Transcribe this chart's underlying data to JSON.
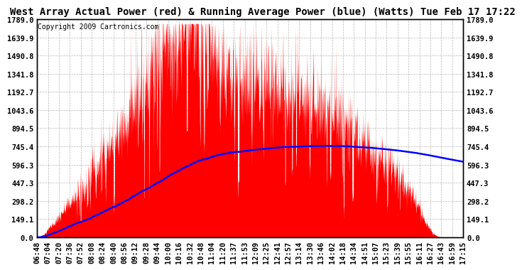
{
  "title": "West Array Actual Power (red) & Running Average Power (blue) (Watts) Tue Feb 17 17:22",
  "copyright": "Copyright 2009 Cartronics.com",
  "ylabel_values": [
    0.0,
    149.1,
    298.2,
    447.3,
    596.3,
    745.4,
    894.5,
    1043.6,
    1192.7,
    1341.8,
    1490.8,
    1639.9,
    1789.0
  ],
  "ymax": 1789.0,
  "ymin": 0.0,
  "bg_color": "#ffffff",
  "plot_bg_color": "#ffffff",
  "grid_color": "#888888",
  "red_color": "#ff0000",
  "blue_color": "#0000ff",
  "title_fontsize": 10,
  "copyright_fontsize": 7,
  "tick_label_fontsize": 7.5,
  "x_tick_labels": [
    "06:48",
    "07:04",
    "07:20",
    "07:36",
    "07:52",
    "08:08",
    "08:24",
    "08:40",
    "08:56",
    "09:12",
    "09:28",
    "09:44",
    "10:00",
    "10:16",
    "10:32",
    "10:48",
    "11:04",
    "11:20",
    "11:37",
    "11:53",
    "12:09",
    "12:25",
    "12:41",
    "12:57",
    "13:14",
    "13:30",
    "13:46",
    "14:02",
    "14:18",
    "14:34",
    "14:51",
    "15:07",
    "15:23",
    "15:39",
    "15:55",
    "16:11",
    "16:27",
    "16:43",
    "16:59",
    "17:15"
  ]
}
